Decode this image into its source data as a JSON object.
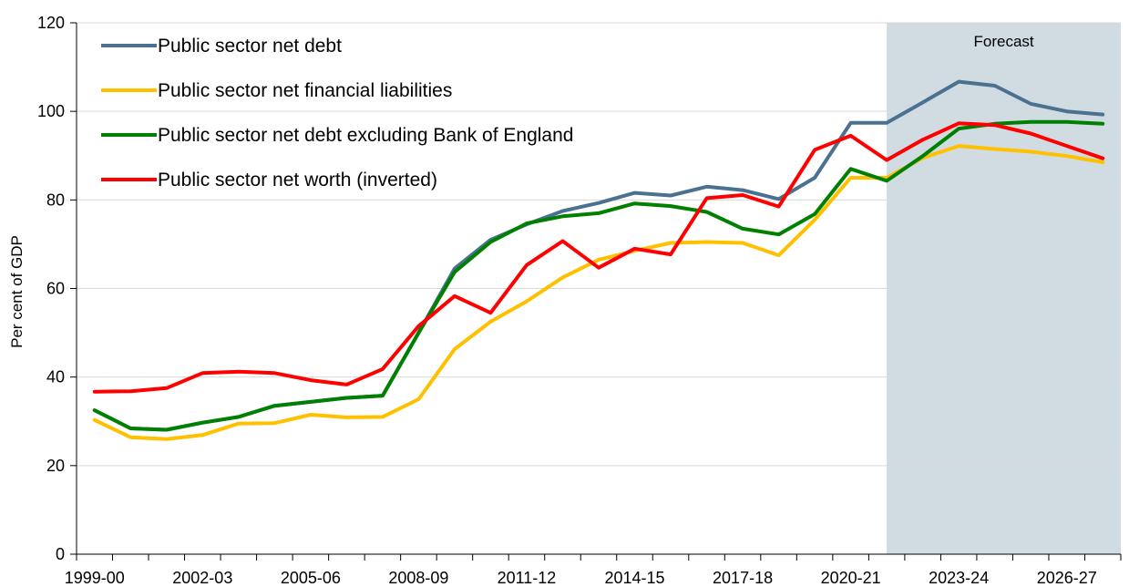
{
  "chart_data": {
    "type": "line",
    "title": "",
    "xlabel": "",
    "ylabel": "Per cent of GDP",
    "ylim": [
      0,
      120
    ],
    "yticks": [
      0,
      20,
      40,
      60,
      80,
      100,
      120
    ],
    "grid": true,
    "legend_position": "top-left",
    "x": [
      "1999-00",
      "2000-01",
      "2001-02",
      "2002-03",
      "2003-04",
      "2004-05",
      "2005-06",
      "2006-07",
      "2007-08",
      "2008-09",
      "2009-10",
      "2010-11",
      "2011-12",
      "2012-13",
      "2013-14",
      "2014-15",
      "2015-16",
      "2016-17",
      "2017-18",
      "2018-19",
      "2019-20",
      "2020-21",
      "2021-22",
      "2022-23",
      "2023-24",
      "2024-25",
      "2025-26",
      "2026-27",
      "2027-28"
    ],
    "x_tick_labels": [
      "1999-00",
      "2002-03",
      "2005-06",
      "2008-09",
      "2011-12",
      "2014-15",
      "2017-18",
      "2020-21",
      "2023-24",
      "2026-27"
    ],
    "forecast": {
      "label": "Forecast",
      "start": "2021-22",
      "end": "2027-28",
      "color": "#d1dbe2"
    },
    "series": [
      {
        "name": "Public sector net debt",
        "color": "#4b7191",
        "values": [
          32.5,
          28.4,
          28.1,
          29.7,
          31.0,
          33.5,
          34.4,
          35.3,
          35.8,
          50.0,
          64.5,
          71.0,
          74.5,
          77.5,
          79.3,
          81.6,
          81.0,
          83.0,
          82.2,
          80.2,
          85.0,
          97.4,
          97.4,
          102.0,
          106.7,
          105.8,
          101.7,
          100.0,
          99.3
        ]
      },
      {
        "name": "Public sector net financial liabilities",
        "color": "#ffc000",
        "values": [
          30.3,
          26.4,
          26.0,
          26.9,
          29.5,
          29.6,
          31.5,
          30.9,
          31.0,
          35.0,
          46.3,
          52.5,
          57.1,
          62.5,
          66.5,
          68.5,
          70.3,
          70.5,
          70.3,
          67.5,
          75.5,
          85.0,
          85.0,
          89.5,
          92.2,
          91.5,
          90.9,
          89.9,
          88.5
        ]
      },
      {
        "name": "Public sector net debt excluding Bank of England",
        "color": "#008000",
        "values": [
          32.5,
          28.4,
          28.1,
          29.7,
          31.0,
          33.5,
          34.4,
          35.3,
          35.8,
          50.0,
          63.7,
          70.5,
          74.7,
          76.3,
          77.0,
          79.2,
          78.6,
          77.3,
          73.5,
          72.2,
          76.8,
          87.0,
          84.3,
          89.9,
          96.1,
          97.2,
          97.6,
          97.6,
          97.2
        ]
      },
      {
        "name": "Public sector net worth (inverted)",
        "color": "#ff0000",
        "values": [
          36.7,
          36.8,
          37.5,
          40.9,
          41.2,
          40.9,
          39.3,
          38.3,
          41.8,
          51.5,
          58.3,
          54.5,
          65.3,
          70.7,
          64.7,
          69.0,
          67.7,
          80.4,
          81.1,
          78.5,
          91.3,
          94.5,
          89.0,
          93.6,
          97.3,
          96.9,
          95.0,
          92.2,
          89.4
        ]
      }
    ]
  }
}
